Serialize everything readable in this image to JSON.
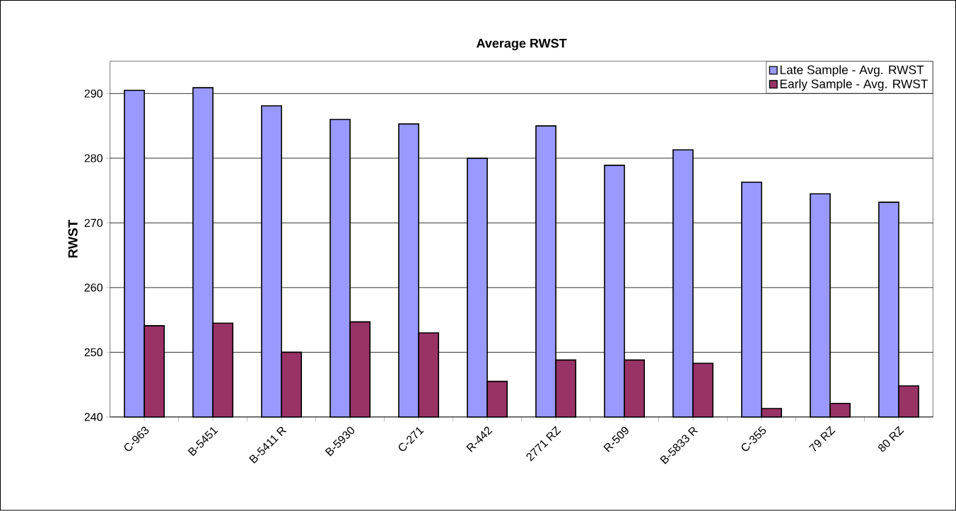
{
  "chart_data": {
    "type": "bar",
    "title": "Average RWST",
    "ylabel": "RWST",
    "categories": [
      "C-963",
      "B-5451",
      "B-5411 R",
      "B-5930",
      "C-271",
      "R-442",
      "2771 RZ",
      "R-509",
      "B-5833 R",
      "C-355",
      "79 RZ",
      "80 RZ"
    ],
    "series": [
      {
        "name": "Late Sample - Avg. RWST",
        "color": "#9999ff",
        "values": [
          290.5,
          290.9,
          288.1,
          286.0,
          285.3,
          280.0,
          285.0,
          278.9,
          281.3,
          276.3,
          274.5,
          273.2
        ]
      },
      {
        "name": "Early Sample - Avg. RWST",
        "color": "#993366",
        "values": [
          254.1,
          254.5,
          250.0,
          254.7,
          253.0,
          245.5,
          248.8,
          248.8,
          248.3,
          241.3,
          242.1,
          244.8
        ]
      }
    ],
    "ylim": [
      240,
      295
    ],
    "yticks": [
      240,
      250,
      260,
      270,
      280,
      290
    ],
    "grid": "y",
    "legend": "top right"
  }
}
